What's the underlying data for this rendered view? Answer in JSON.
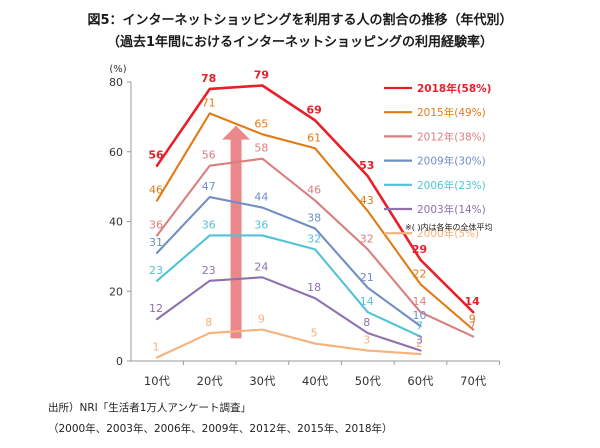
{
  "title": "図5：インターネットショッピングを利用する人の割合の推移（年代別）",
  "subtitle": "（過去1年間におけるインターネットショッピングの利用経験率）",
  "source_line1": "出所）NRI「生活者1万人アンケート調査」",
  "source_line2": "（2000年、2003年、2006年、2009年、2012年、2015年、2018年）",
  "note": "※( )内は各年の全体平均",
  "chart_data": {
    "type": "line",
    "categories": [
      "10代",
      "20代",
      "30代",
      "40代",
      "50代",
      "60代",
      "70代"
    ],
    "ylabel": "(%)",
    "ylim": [
      0,
      80
    ],
    "yticks": [
      0,
      20,
      40,
      60,
      80
    ],
    "legend_position": "right",
    "grid": false,
    "annotation_arrow": "upward arrow from 20代–30代 baseline toward 2018 line",
    "series": [
      {
        "name": "2018年(58%)",
        "color": "#e8202a",
        "values": [
          56,
          78,
          79,
          69,
          53,
          29,
          14
        ]
      },
      {
        "name": "2015年(49%)",
        "color": "#e07b16",
        "values": [
          46,
          71,
          65,
          61,
          43,
          22,
          9
        ]
      },
      {
        "name": "2012年(38%)",
        "color": "#d97f7f",
        "values": [
          36,
          56,
          58,
          46,
          32,
          14,
          7
        ]
      },
      {
        "name": "2009年(30%)",
        "color": "#6f8fc4",
        "values": [
          31,
          47,
          44,
          38,
          21,
          10,
          null
        ]
      },
      {
        "name": "2006年(23%)",
        "color": "#52c3d6",
        "values": [
          23,
          36,
          36,
          32,
          14,
          7,
          null
        ]
      },
      {
        "name": "2003年(14%)",
        "color": "#8e71ad",
        "values": [
          12,
          23,
          24,
          18,
          8,
          3,
          null
        ]
      },
      {
        "name": "2000年(5%)",
        "color": "#f5b27a",
        "values": [
          1,
          8,
          9,
          5,
          3,
          2,
          null
        ]
      }
    ]
  }
}
